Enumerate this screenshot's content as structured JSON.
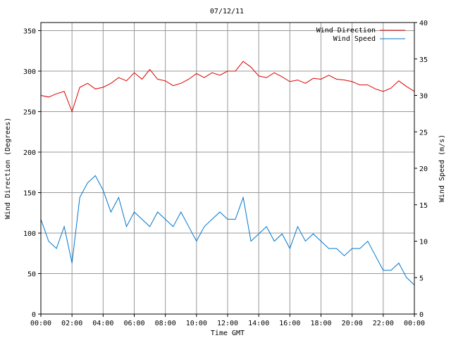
{
  "chart_data": {
    "type": "line",
    "title": "07/12/11",
    "xlabel": "Time GMT",
    "ylabel_left": "Wind Direction (Degrees)",
    "ylabel_right": "Wind Speed (m/s)",
    "x_ticks": [
      "00:00",
      "02:00",
      "04:00",
      "06:00",
      "08:00",
      "10:00",
      "12:00",
      "14:00",
      "16:00",
      "18:00",
      "20:00",
      "22:00",
      "00:00"
    ],
    "x_range_hours": [
      0,
      24
    ],
    "y_left_range": [
      0,
      360
    ],
    "y_left_ticks": [
      0,
      50,
      100,
      150,
      200,
      250,
      300,
      350
    ],
    "y_right_range": [
      0,
      40
    ],
    "y_right_ticks": [
      0,
      5,
      10,
      15,
      20,
      25,
      30,
      35,
      40
    ],
    "grid": true,
    "legend_position": "top-right",
    "series": [
      {
        "name": "Wind Direction",
        "axis": "left",
        "color": "#dd0000",
        "x": [
          0,
          0.5,
          1,
          1.5,
          2,
          2.5,
          3,
          3.5,
          4,
          4.5,
          5,
          5.5,
          6,
          6.5,
          7,
          7.5,
          8,
          8.5,
          9,
          9.5,
          10,
          10.5,
          11,
          11.5,
          12,
          12.5,
          13,
          13.5,
          14,
          14.5,
          15,
          15.5,
          16,
          16.5,
          17,
          17.5,
          18,
          18.5,
          19,
          19.5,
          20,
          20.5,
          21,
          21.5,
          22,
          22.5,
          23,
          23.5,
          24
        ],
        "values": [
          270,
          268,
          272,
          275,
          250,
          280,
          285,
          278,
          280,
          285,
          292,
          288,
          298,
          290,
          302,
          290,
          288,
          282,
          285,
          290,
          297,
          292,
          298,
          295,
          300,
          300,
          312,
          305,
          294,
          292,
          298,
          293,
          287,
          289,
          285,
          291,
          290,
          295,
          290,
          289,
          287,
          283,
          283,
          278,
          275,
          279,
          288,
          281,
          275
        ]
      },
      {
        "name": "Wind Speed",
        "axis": "right",
        "color": "#0077cc",
        "x": [
          0,
          0.5,
          1,
          1.5,
          2,
          2.5,
          3,
          3.5,
          4,
          4.5,
          5,
          5.5,
          6,
          6.5,
          7,
          7.5,
          8,
          8.5,
          9,
          9.5,
          10,
          10.5,
          11,
          11.5,
          12,
          12.5,
          13,
          13.5,
          14,
          14.5,
          15,
          15.5,
          16,
          16.5,
          17,
          17.5,
          18,
          18.5,
          19,
          19.5,
          20,
          20.5,
          21,
          21.5,
          22,
          22.5,
          23,
          23.5,
          24
        ],
        "values": [
          13,
          10,
          9,
          12,
          7,
          16,
          18,
          19,
          17,
          14,
          16,
          12,
          14,
          13,
          12,
          14,
          13,
          12,
          14,
          12,
          10,
          12,
          13,
          14,
          13,
          13,
          16,
          10,
          11,
          12,
          10,
          11,
          9,
          12,
          10,
          11,
          10,
          9,
          9,
          8,
          9,
          9,
          10,
          8,
          6,
          6,
          7,
          5,
          4
        ]
      }
    ]
  }
}
